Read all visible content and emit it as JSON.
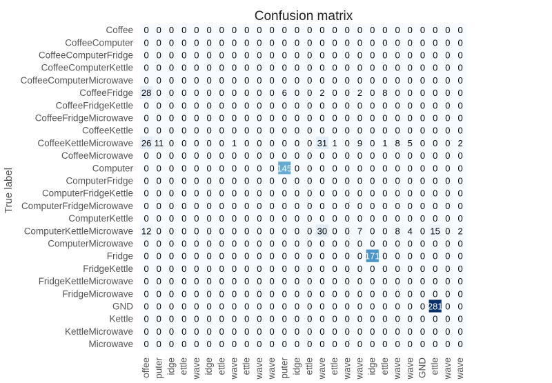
{
  "chart_data": {
    "type": "heatmap",
    "title": "Confusion matrix",
    "ylabel": "True label",
    "xlabel": "",
    "labels": [
      "Coffee",
      "CoffeeComputer",
      "CoffeeComputerFridge",
      "CoffeeComputerKettle",
      "CoffeeComputerMicrowave",
      "CoffeeFridge",
      "CoffeeFridgeKettle",
      "CoffeeFridgeMicrowave",
      "CoffeeKettle",
      "CoffeeKettleMicrowave",
      "CoffeeMicrowave",
      "Computer",
      "ComputerFridge",
      "ComputerFridgeKettle",
      "ComputerFridgeMicrowave",
      "ComputerKettle",
      "ComputerKettleMicrowave",
      "ComputerMicrowave",
      "Fridge",
      "FridgeKettle",
      "FridgeKettleMicrowave",
      "FridgeMicrowave",
      "GND",
      "Kettle",
      "KettleMicrowave",
      "Microwave"
    ],
    "x_tick_labels": [
      "offee",
      "puter",
      "idge",
      "ettle",
      "wave",
      "idge",
      "ettle",
      "wave",
      "ettle",
      "wave",
      "wave",
      "puter",
      "idge",
      "ettle",
      "wave",
      "ettle",
      "wave",
      "wave",
      "idge",
      "ettle",
      "wave",
      "wave",
      "GND",
      "ettle",
      "wave",
      "wave"
    ],
    "matrix": [
      [
        0,
        0,
        0,
        0,
        0,
        0,
        0,
        0,
        0,
        0,
        0,
        0,
        0,
        0,
        0,
        0,
        0,
        0,
        0,
        0,
        0,
        0,
        0,
        0,
        0,
        0
      ],
      [
        0,
        0,
        0,
        0,
        0,
        0,
        0,
        0,
        0,
        0,
        0,
        0,
        0,
        0,
        0,
        0,
        0,
        0,
        0,
        0,
        0,
        0,
        0,
        0,
        0,
        0
      ],
      [
        0,
        0,
        0,
        0,
        0,
        0,
        0,
        0,
        0,
        0,
        0,
        0,
        0,
        0,
        0,
        0,
        0,
        0,
        0,
        0,
        0,
        0,
        0,
        0,
        0,
        0
      ],
      [
        0,
        0,
        0,
        0,
        0,
        0,
        0,
        0,
        0,
        0,
        0,
        0,
        0,
        0,
        0,
        0,
        0,
        0,
        0,
        0,
        0,
        0,
        0,
        0,
        0,
        0
      ],
      [
        0,
        0,
        0,
        0,
        0,
        0,
        0,
        0,
        0,
        0,
        0,
        0,
        0,
        0,
        0,
        0,
        0,
        0,
        0,
        0,
        0,
        0,
        0,
        0,
        0,
        0
      ],
      [
        28,
        0,
        0,
        0,
        0,
        0,
        0,
        0,
        0,
        0,
        0,
        6,
        0,
        0,
        2,
        0,
        0,
        2,
        0,
        8,
        0,
        0,
        0,
        0,
        0,
        0
      ],
      [
        0,
        0,
        0,
        0,
        0,
        0,
        0,
        0,
        0,
        0,
        0,
        0,
        0,
        0,
        0,
        0,
        0,
        0,
        0,
        0,
        0,
        0,
        0,
        0,
        0,
        0
      ],
      [
        0,
        0,
        0,
        0,
        0,
        0,
        0,
        0,
        0,
        0,
        0,
        0,
        0,
        0,
        0,
        0,
        0,
        0,
        0,
        0,
        0,
        0,
        0,
        0,
        0,
        0
      ],
      [
        0,
        0,
        0,
        0,
        0,
        0,
        0,
        0,
        0,
        0,
        0,
        0,
        0,
        0,
        0,
        0,
        0,
        0,
        0,
        0,
        0,
        0,
        0,
        0,
        0,
        0
      ],
      [
        26,
        11,
        0,
        0,
        0,
        0,
        0,
        1,
        0,
        0,
        0,
        0,
        0,
        0,
        31,
        1,
        0,
        9,
        0,
        1,
        8,
        5,
        0,
        0,
        0,
        2
      ],
      [
        0,
        0,
        0,
        0,
        0,
        0,
        0,
        0,
        0,
        0,
        0,
        0,
        0,
        0,
        0,
        0,
        0,
        0,
        0,
        0,
        0,
        0,
        0,
        0,
        0,
        0
      ],
      [
        0,
        0,
        0,
        0,
        0,
        0,
        0,
        0,
        0,
        0,
        0,
        145,
        0,
        0,
        0,
        0,
        0,
        0,
        0,
        0,
        0,
        0,
        0,
        0,
        0,
        0
      ],
      [
        0,
        0,
        0,
        0,
        0,
        0,
        0,
        0,
        0,
        0,
        0,
        0,
        0,
        0,
        0,
        0,
        0,
        0,
        0,
        0,
        0,
        0,
        0,
        0,
        0,
        0
      ],
      [
        0,
        0,
        0,
        0,
        0,
        0,
        0,
        0,
        0,
        0,
        0,
        0,
        0,
        0,
        0,
        0,
        0,
        0,
        0,
        0,
        0,
        0,
        0,
        0,
        0,
        0
      ],
      [
        0,
        0,
        0,
        0,
        0,
        0,
        0,
        0,
        0,
        0,
        0,
        0,
        0,
        0,
        0,
        0,
        0,
        0,
        0,
        0,
        0,
        0,
        0,
        0,
        0,
        0
      ],
      [
        0,
        0,
        0,
        0,
        0,
        0,
        0,
        0,
        0,
        0,
        0,
        0,
        0,
        0,
        0,
        0,
        0,
        0,
        0,
        0,
        0,
        0,
        0,
        0,
        0,
        0
      ],
      [
        12,
        0,
        0,
        0,
        0,
        0,
        0,
        0,
        0,
        0,
        0,
        0,
        0,
        0,
        30,
        0,
        0,
        7,
        0,
        0,
        8,
        4,
        0,
        15,
        0,
        2
      ],
      [
        0,
        0,
        0,
        0,
        0,
        0,
        0,
        0,
        0,
        0,
        0,
        0,
        0,
        0,
        0,
        0,
        0,
        0,
        0,
        0,
        0,
        0,
        0,
        0,
        0,
        0
      ],
      [
        0,
        0,
        0,
        0,
        0,
        0,
        0,
        0,
        0,
        0,
        0,
        0,
        0,
        0,
        0,
        0,
        0,
        0,
        171,
        0,
        0,
        0,
        0,
        0,
        0,
        0
      ],
      [
        0,
        0,
        0,
        0,
        0,
        0,
        0,
        0,
        0,
        0,
        0,
        0,
        0,
        0,
        0,
        0,
        0,
        0,
        0,
        0,
        0,
        0,
        0,
        0,
        0,
        0
      ],
      [
        0,
        0,
        0,
        0,
        0,
        0,
        0,
        0,
        0,
        0,
        0,
        0,
        0,
        0,
        0,
        0,
        0,
        0,
        0,
        0,
        0,
        0,
        0,
        0,
        0,
        0
      ],
      [
        0,
        0,
        0,
        0,
        0,
        0,
        0,
        0,
        0,
        0,
        0,
        0,
        0,
        0,
        0,
        0,
        0,
        0,
        0,
        0,
        0,
        0,
        0,
        0,
        0,
        0
      ],
      [
        0,
        0,
        0,
        0,
        0,
        0,
        0,
        0,
        0,
        0,
        0,
        0,
        0,
        0,
        0,
        0,
        0,
        0,
        0,
        0,
        0,
        0,
        0,
        281,
        0,
        0
      ],
      [
        0,
        0,
        0,
        0,
        0,
        0,
        0,
        0,
        0,
        0,
        0,
        0,
        0,
        0,
        0,
        0,
        0,
        0,
        0,
        0,
        0,
        0,
        0,
        0,
        0,
        0
      ],
      [
        0,
        0,
        0,
        0,
        0,
        0,
        0,
        0,
        0,
        0,
        0,
        0,
        0,
        0,
        0,
        0,
        0,
        0,
        0,
        0,
        0,
        0,
        0,
        0,
        0,
        0
      ],
      [
        0,
        0,
        0,
        0,
        0,
        0,
        0,
        0,
        0,
        0,
        0,
        0,
        0,
        0,
        0,
        0,
        0,
        0,
        0,
        0,
        0,
        0,
        0,
        0,
        0,
        0
      ]
    ],
    "colormap": "Blues",
    "vmin": 0,
    "vmax": 281,
    "colors": {
      "low": "#f7fbff",
      "mid1": "#c6dbef",
      "mid2": "#6baed6",
      "mid3": "#2171b5",
      "high": "#08306b",
      "text_dark": "#000000",
      "text_light": "#ffffff",
      "tick_label": "#555555"
    },
    "grid": false
  }
}
